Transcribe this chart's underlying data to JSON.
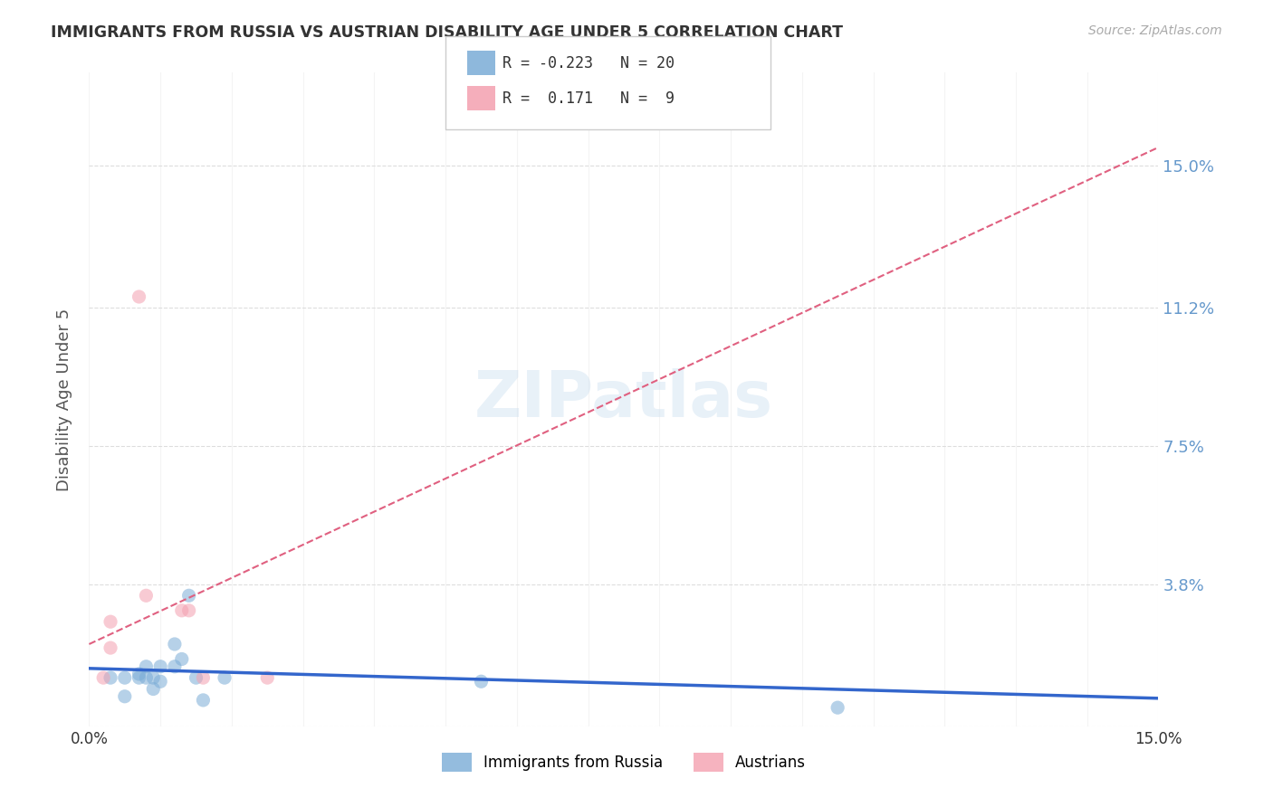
{
  "title": "IMMIGRANTS FROM RUSSIA VS AUSTRIAN DISABILITY AGE UNDER 5 CORRELATION CHART",
  "source": "Source: ZipAtlas.com",
  "ylabel": "Disability Age Under 5",
  "xmin": 0.0,
  "xmax": 0.15,
  "ymin": 0.0,
  "ymax": 0.175,
  "yticks": [
    0.0,
    0.038,
    0.075,
    0.112,
    0.15
  ],
  "ytick_labels": [
    "",
    "3.8%",
    "7.5%",
    "11.2%",
    "15.0%"
  ],
  "background_color": "#ffffff",
  "grid_color": "#dddddd",
  "title_color": "#333333",
  "right_axis_color": "#6699cc",
  "blue_scatter_x": [
    0.003,
    0.005,
    0.005,
    0.007,
    0.007,
    0.008,
    0.008,
    0.009,
    0.009,
    0.01,
    0.01,
    0.012,
    0.012,
    0.013,
    0.014,
    0.015,
    0.016,
    0.019,
    0.055,
    0.105
  ],
  "blue_scatter_y": [
    0.013,
    0.013,
    0.008,
    0.014,
    0.013,
    0.013,
    0.016,
    0.013,
    0.01,
    0.016,
    0.012,
    0.016,
    0.022,
    0.018,
    0.035,
    0.013,
    0.007,
    0.013,
    0.012,
    0.005
  ],
  "pink_scatter_x": [
    0.002,
    0.003,
    0.003,
    0.007,
    0.008,
    0.013,
    0.014,
    0.016,
    0.025
  ],
  "pink_scatter_y": [
    0.013,
    0.021,
    0.028,
    0.115,
    0.035,
    0.031,
    0.031,
    0.013,
    0.013
  ],
  "blue_line_x": [
    0.0,
    0.15
  ],
  "blue_line_y": [
    0.0155,
    0.0075
  ],
  "pink_line_x": [
    0.0,
    0.15
  ],
  "pink_line_y": [
    0.022,
    0.155
  ],
  "scatter_alpha": 0.55,
  "scatter_size": 120,
  "blue_color": "#7aacd6",
  "pink_color": "#f4a0b0",
  "blue_line_color": "#3366cc",
  "pink_line_color": "#e06080",
  "watermark": "ZIPatlas",
  "legend_r1": "R = -0.223",
  "legend_n1": "N = 20",
  "legend_r2": "R =  0.171",
  "legend_n2": "N =  9"
}
